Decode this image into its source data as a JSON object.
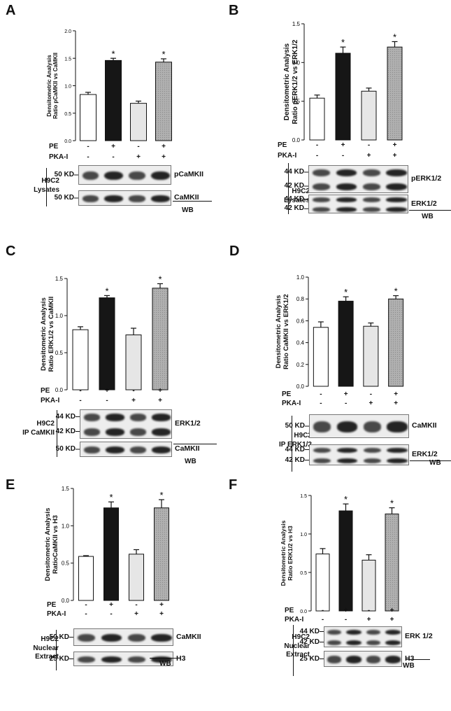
{
  "colors": {
    "bar_control": "#ffffff",
    "bar_pe": "#161616",
    "bar_pkai": "#e6e6e6",
    "bar_pe_pkai": "#a9a9a9",
    "band": "#1a1a1a"
  },
  "treatment_rows": {
    "pe_label": "PE",
    "pkai_label": "PKA-I",
    "pe": [
      "-",
      "+",
      "-",
      "+"
    ],
    "pkai": [
      "-",
      "-",
      "+",
      "+"
    ]
  },
  "wb_label": "WB",
  "significance_marker": "*",
  "panels": [
    {
      "letter": "A",
      "ylabel": [
        "Densitometric Analysis",
        "Ratio pCaMKII vs CaMKII"
      ],
      "cell": [
        "H9C2",
        "Lysates"
      ],
      "blots": [
        {
          "kd": [
            "50 KD"
          ],
          "label": "pCaMKII"
        },
        {
          "kd": [
            "50 KD"
          ],
          "label": "CaMKII"
        }
      ]
    },
    {
      "letter": "B",
      "ylabel": [
        "Densitometric Analysis",
        "Ratio pERK1/2 vs ERK1/2"
      ],
      "cell": [
        "H9C2",
        "Lysates"
      ],
      "blots": [
        {
          "kd": [
            "44 KD",
            "42 KD"
          ],
          "label": "pERK1/2"
        },
        {
          "kd": [
            "44 KD",
            "42 KD"
          ],
          "label": "ERK1/2"
        }
      ]
    },
    {
      "letter": "C",
      "ylabel": [
        "Densitometric Analysis",
        "Ratio ERK1/2 vs CaMKII"
      ],
      "cell": [
        "H9C2",
        "IP CaMKII"
      ],
      "blots": [
        {
          "kd": [
            "44 KD",
            "42 KD"
          ],
          "label": "ERK1/2"
        },
        {
          "kd": [
            "50 KD"
          ],
          "label": "CaMKII"
        }
      ]
    },
    {
      "letter": "D",
      "ylabel": [
        "Densitometric Analysis",
        "Ratio CaMKII vs ERK1/2"
      ],
      "cell": [
        "H9C2",
        "IP ERK1/2"
      ],
      "blots": [
        {
          "kd": [
            "50 KD"
          ],
          "label": "CaMKII"
        },
        {
          "kd": [
            "44 KD",
            "42 KD"
          ],
          "label": "ERK1/2"
        }
      ]
    },
    {
      "letter": "E",
      "ylabel": [
        "Densitometric Analysis",
        "RatioCaMKII vs H3"
      ],
      "cell": [
        "H9C2",
        "Nuclear",
        "Extract"
      ],
      "blots": [
        {
          "kd": [
            "50 KD"
          ],
          "label": "CaMKII"
        },
        {
          "kd": [
            "25 KD"
          ],
          "label": "H3"
        }
      ]
    },
    {
      "letter": "F",
      "ylabel": [
        "Densitometric Analysis",
        "Ratio ERK1/2 vs H3"
      ],
      "cell": [
        "H9C2",
        "Nuclear",
        "Extract"
      ],
      "blots": [
        {
          "kd": [
            "44 KD",
            "42 KD"
          ],
          "label": "ERK 1/2"
        },
        {
          "kd": [
            "25 KD"
          ],
          "label": "H3"
        }
      ]
    }
  ],
  "chart_data": [
    {
      "panel": "A",
      "type": "bar",
      "categories": [
        "Control",
        "PE",
        "PKA-I",
        "PE + PKA-I"
      ],
      "values": [
        0.84,
        1.46,
        0.68,
        1.43
      ],
      "errors": [
        0.04,
        0.04,
        0.04,
        0.06
      ],
      "significant": [
        false,
        true,
        false,
        true
      ],
      "ylim": [
        0.0,
        2.0
      ],
      "yticks": [
        "0.0",
        "0.5",
        "1.0",
        "1.5",
        "2.0"
      ]
    },
    {
      "panel": "B",
      "type": "bar",
      "categories": [
        "Control",
        "PE",
        "PKA-I",
        "PE + PKA-I"
      ],
      "values": [
        0.54,
        1.12,
        0.63,
        1.2
      ],
      "errors": [
        0.04,
        0.08,
        0.04,
        0.07
      ],
      "significant": [
        false,
        true,
        false,
        true
      ],
      "ylim": [
        0.0,
        1.5
      ],
      "yticks": [
        "0.0",
        "0.5",
        "1.0",
        "1.5"
      ]
    },
    {
      "panel": "C",
      "type": "bar",
      "categories": [
        "Control",
        "PE",
        "PKA-I",
        "PE + PKA-I"
      ],
      "values": [
        0.81,
        1.24,
        0.74,
        1.37
      ],
      "errors": [
        0.04,
        0.03,
        0.09,
        0.06
      ],
      "significant": [
        false,
        true,
        false,
        true
      ],
      "ylim": [
        0.0,
        1.5
      ],
      "yticks": [
        "0.0",
        "0.5",
        "1.0",
        "1.5"
      ]
    },
    {
      "panel": "D",
      "type": "bar",
      "categories": [
        "Control",
        "PE",
        "PKA-I",
        "PE + PKA-I"
      ],
      "values": [
        0.54,
        0.78,
        0.55,
        0.8
      ],
      "errors": [
        0.05,
        0.04,
        0.03,
        0.03
      ],
      "significant": [
        false,
        true,
        false,
        true
      ],
      "ylim": [
        0.0,
        1.0
      ],
      "yticks": [
        "0.0",
        "0.2",
        "0.4",
        "0.6",
        "0.8",
        "1.0"
      ]
    },
    {
      "panel": "E",
      "type": "bar",
      "categories": [
        "Control",
        "PE",
        "PKA-I",
        "PE + PKA-I"
      ],
      "values": [
        0.59,
        1.24,
        0.62,
        1.24
      ],
      "errors": [
        0.01,
        0.08,
        0.06,
        0.11
      ],
      "significant": [
        false,
        true,
        false,
        true
      ],
      "ylim": [
        0.0,
        1.5
      ],
      "yticks": [
        "0.0",
        "0.5",
        "1.0",
        "1.5"
      ]
    },
    {
      "panel": "F",
      "type": "bar",
      "categories": [
        "Control",
        "PE",
        "PKA-I",
        "PE + PKA-I"
      ],
      "values": [
        0.74,
        1.3,
        0.66,
        1.26
      ],
      "errors": [
        0.07,
        0.09,
        0.07,
        0.08
      ],
      "significant": [
        false,
        true,
        false,
        true
      ],
      "ylim": [
        0.0,
        1.5
      ],
      "yticks": [
        "0.0",
        "0.5",
        "1.0",
        "1.5"
      ]
    }
  ]
}
